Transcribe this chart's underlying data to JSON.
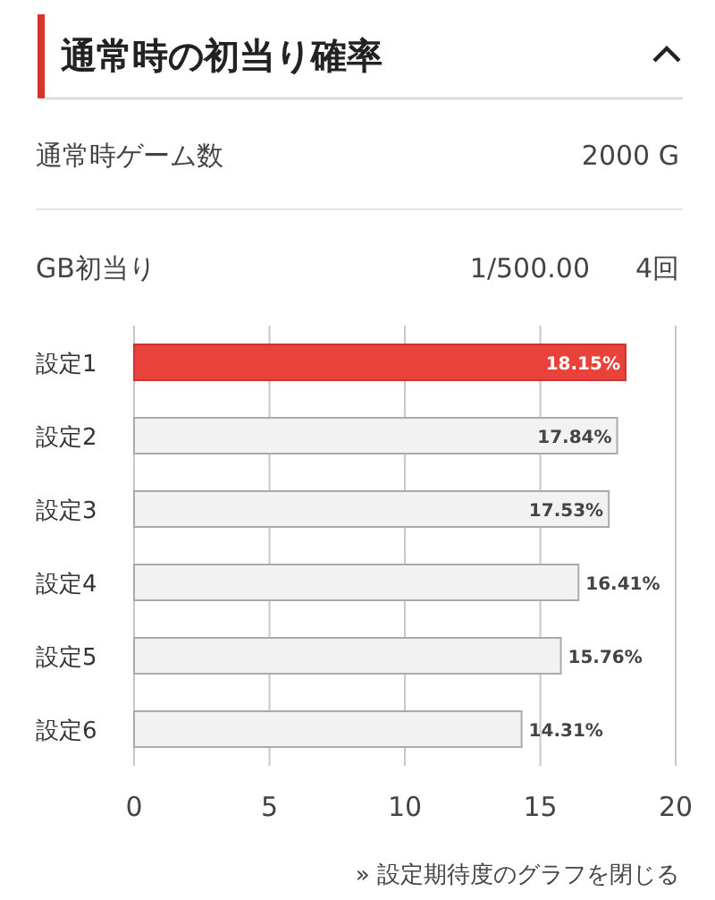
{
  "chart_data": {
    "type": "bar",
    "orientation": "horizontal",
    "title": "通常時の初当り確率",
    "annotations": [
      "通常時ゲーム数",
      "2000 G",
      "GB初当り",
      "1/500.00",
      "4回",
      "» 設定期待度のグラフを閉じる"
    ],
    "categories": [
      "設定1",
      "設定2",
      "設定3",
      "設定4",
      "設定5",
      "設定6"
    ],
    "values": [
      18.15,
      17.84,
      17.53,
      16.41,
      15.76,
      14.31
    ],
    "colors": [
      "#e8423a",
      "#f2f2f2",
      "#f2f2f2",
      "#f2f2f2",
      "#f2f2f2",
      "#f2f2f2"
    ],
    "value_labels": [
      "18.15%",
      "17.84%",
      "17.53%",
      "16.41%",
      "15.76%",
      "14.31%"
    ],
    "xlim": [
      0,
      20
    ],
    "xticks": [
      0,
      5,
      10,
      15,
      20
    ],
    "grid": "x"
  }
}
